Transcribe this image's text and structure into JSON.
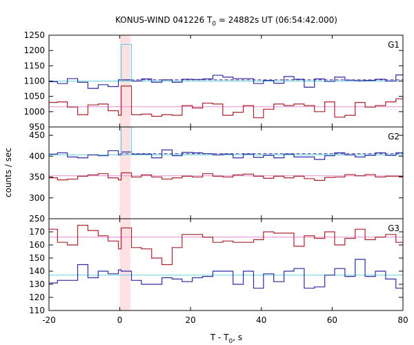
{
  "chart_data": {
    "type": "line",
    "title_main": "KONUS-WIND 041226 T",
    "title_sub": "0",
    "title_rest": " = 24882s UT (06:54:42.000)",
    "xlabel_main": "T - T",
    "xlabel_sub": "0",
    "xlabel_rest": ", s",
    "ylabel": "counts / sec",
    "xlim": [
      -20,
      80
    ],
    "x_ticks": [
      -20,
      0,
      20,
      40,
      60,
      80
    ],
    "bin_edges": [
      -20.5,
      -17.6,
      -14.8,
      -11.9,
      -9.0,
      -6.1,
      -3.3,
      -0.4,
      0.4,
      3.3,
      6.1,
      9.0,
      11.9,
      14.8,
      17.6,
      20.5,
      23.4,
      26.3,
      29.1,
      32.0,
      34.9,
      37.8,
      40.6,
      43.5,
      46.4,
      49.2,
      52.1,
      55.0,
      57.9,
      60.7,
      63.6,
      66.5,
      69.3,
      72.2,
      75.1,
      78.0,
      80.8
    ],
    "highlight_interval": [
      0.0,
      3.0
    ],
    "panels": [
      {
        "label": "G1",
        "ylim": [
          950,
          1250
        ],
        "y_ticks": [
          950,
          1000,
          1050,
          1100,
          1150,
          1200,
          1250
        ],
        "series": [
          {
            "color": "#2b2b9e",
            "values": [
              1098,
              1092,
              1108,
              1096,
              1076,
              1088,
              1082,
              1104,
              1104,
              1100,
              1107,
              1096,
              1104,
              1096,
              1106,
              1105,
              1107,
              1119,
              1113,
              1108,
              1108,
              1092,
              1102,
              1093,
              1115,
              1106,
              1080,
              1107,
              1099,
              1113,
              1103,
              1101,
              1102,
              1106,
              1100,
              1120
            ]
          },
          {
            "color": "#a8202a",
            "values": [
              1030,
              1032,
              1015,
              990,
              1022,
              1025,
              1003,
              988,
              1084,
              990,
              992,
              985,
              990,
              988,
              1020,
              1012,
              1028,
              1025,
              988,
              998,
              1020,
              980,
              1008,
              1025,
              1020,
              1025,
              1020,
              1000,
              1032,
              982,
              988,
              1030,
              1015,
              1020,
              1032,
              1042
            ]
          }
        ],
        "fit_lines": [
          {
            "value": 1100,
            "color": "#5fd3e0"
          },
          {
            "value": 1104,
            "color": "#2b2b9e",
            "dashed": true,
            "x_from": 0.0
          },
          {
            "value": 1016,
            "color": "#e58ad6"
          }
        ],
        "spike": {
          "x0": 0.4,
          "x1": 3.3,
          "value": 1220,
          "color": "#5fd3e0",
          "base": 1100
        }
      },
      {
        "label": "G2",
        "ylim": [
          250,
          470
        ],
        "y_ticks": [
          250,
          300,
          350,
          400,
          450
        ],
        "series": [
          {
            "color": "#2b2b9e",
            "values": [
              405,
              408,
              398,
              396,
              403,
              401,
              413,
              403,
              410,
              405,
              405,
              396,
              415,
              401,
              409,
              408,
              406,
              403,
              405,
              396,
              405,
              397,
              402,
              396,
              405,
              398,
              398,
              392,
              401,
              408,
              403,
              398,
              402,
              408,
              402,
              408
            ]
          },
          {
            "color": "#a8202a",
            "values": [
              348,
              343,
              345,
              352,
              355,
              358,
              348,
              343,
              360,
              350,
              355,
              350,
              345,
              348,
              352,
              350,
              358,
              352,
              350,
              355,
              357,
              352,
              347,
              352,
              348,
              352,
              346,
              342,
              349,
              350,
              356,
              353,
              356,
              350,
              352,
              352
            ]
          }
        ],
        "fit_lines": [
          {
            "value": 403,
            "color": "#5fd3e0"
          },
          {
            "value": 406,
            "color": "#2b2b9e",
            "dashed": true,
            "x_from": 0.0
          },
          {
            "value": 353,
            "color": "#e58ad6"
          }
        ],
        "spike": {
          "x0": 0.4,
          "x1": 3.3,
          "value": 470,
          "color": "#5fd3e0",
          "base": 403
        }
      },
      {
        "label": "G3",
        "ylim": [
          110,
          180
        ],
        "y_ticks": [
          110,
          120,
          130,
          140,
          150,
          160,
          170
        ],
        "series": [
          {
            "color": "#a8202a",
            "values": [
              172,
              162,
              160,
              175,
              171,
              167,
              163,
              157,
              173,
              158,
              157,
              150,
              145,
              158,
              168,
              168,
              166,
              162,
              163,
              162,
              162,
              164,
              170,
              169,
              169,
              159,
              167,
              165,
              170,
              160,
              165,
              172,
              164,
              166,
              168,
              162
            ]
          },
          {
            "color": "#2b2b9e",
            "values": [
              131,
              133,
              133,
              145,
              135,
              140,
              138,
              141,
              140,
              133,
              130,
              130,
              135,
              134,
              132,
              135,
              136,
              140,
              140,
              130,
              140,
              127,
              138,
              132,
              140,
              142,
              127,
              128,
              137,
              142,
              136,
              149,
              136,
              140,
              134,
              127
            ]
          }
        ],
        "fit_lines": [
          {
            "value": 166,
            "color": "#e58ad6"
          },
          {
            "value": 137,
            "color": "#5fd3e0"
          }
        ]
      }
    ]
  }
}
